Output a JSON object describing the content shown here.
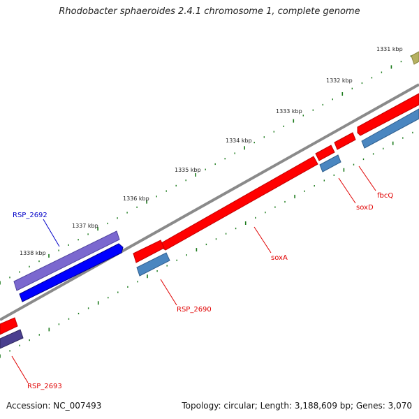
{
  "header": {
    "title": "Rhodobacter sphaeroides 2.4.1 chromosome 1, complete genome"
  },
  "footer": {
    "accession": "Accession: NC_007493",
    "summary": "Topology: circular; Length: 3,188,609 bp; Genes: 3,070"
  },
  "scale_labels": [
    "1331 kbp",
    "1332 kbp",
    "1333 kbp",
    "1334 kbp",
    "1335 kbp",
    "1336 kbp",
    "1337 kbp",
    "1338 kbp"
  ],
  "gene_labels": [
    {
      "text": "fbcQ",
      "color": "#e00000"
    },
    {
      "text": "soxD",
      "color": "#e00000"
    },
    {
      "text": "soxA",
      "color": "#e00000"
    },
    {
      "text": "RSP_2690",
      "color": "#e00000"
    },
    {
      "text": "RSP_2692",
      "color": "#0000c8"
    },
    {
      "text": "RSP_2693",
      "color": "#e00000"
    }
  ],
  "colors": {
    "backbone": "#8a8a8a",
    "cds_red": "#ff0000",
    "steelblue": "#4a86c0",
    "blue": "#0000ff",
    "purple": "#7b68cf",
    "dark_purple": "#4a3f8f",
    "olive": "#b5b060",
    "tick_green": "#1a7a1a"
  }
}
